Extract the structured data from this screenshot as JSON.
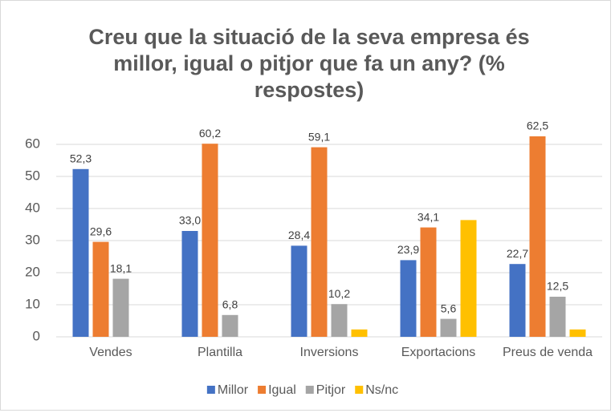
{
  "chart_data": {
    "type": "bar",
    "title": "Creu que la situació de la seva empresa és millor, igual o pitjor que fa un any? (% respostes)",
    "categories": [
      "Vendes",
      "Plantilla",
      "Inversions",
      "Exportacions",
      "Preus de venda"
    ],
    "series": [
      {
        "name": "Millor",
        "color": "#4472c4",
        "values": [
          52.3,
          33.0,
          28.4,
          23.9,
          22.7
        ],
        "value_labels": [
          "52,3",
          "33,0",
          "28,4",
          "23,9",
          "22,7"
        ]
      },
      {
        "name": "Igual",
        "color": "#ed7d31",
        "values": [
          29.6,
          60.2,
          59.1,
          34.1,
          62.5
        ],
        "value_labels": [
          "29,6",
          "60,2",
          "59,1",
          "34,1",
          "62,5"
        ]
      },
      {
        "name": "Pitjor",
        "color": "#a5a5a5",
        "values": [
          18.1,
          6.8,
          10.2,
          5.6,
          12.5
        ],
        "value_labels": [
          "18,1",
          "6,8",
          "10,2",
          "5,6",
          "12,5"
        ]
      },
      {
        "name": "Ns/nc",
        "color": "#ffc000",
        "values": [
          null,
          null,
          2.3,
          36.4,
          2.3
        ]
      }
    ],
    "ylim": [
      0,
      65
    ],
    "yticks": [
      0,
      10,
      20,
      30,
      40,
      50,
      60
    ],
    "grid": true,
    "legend": "bottom"
  }
}
